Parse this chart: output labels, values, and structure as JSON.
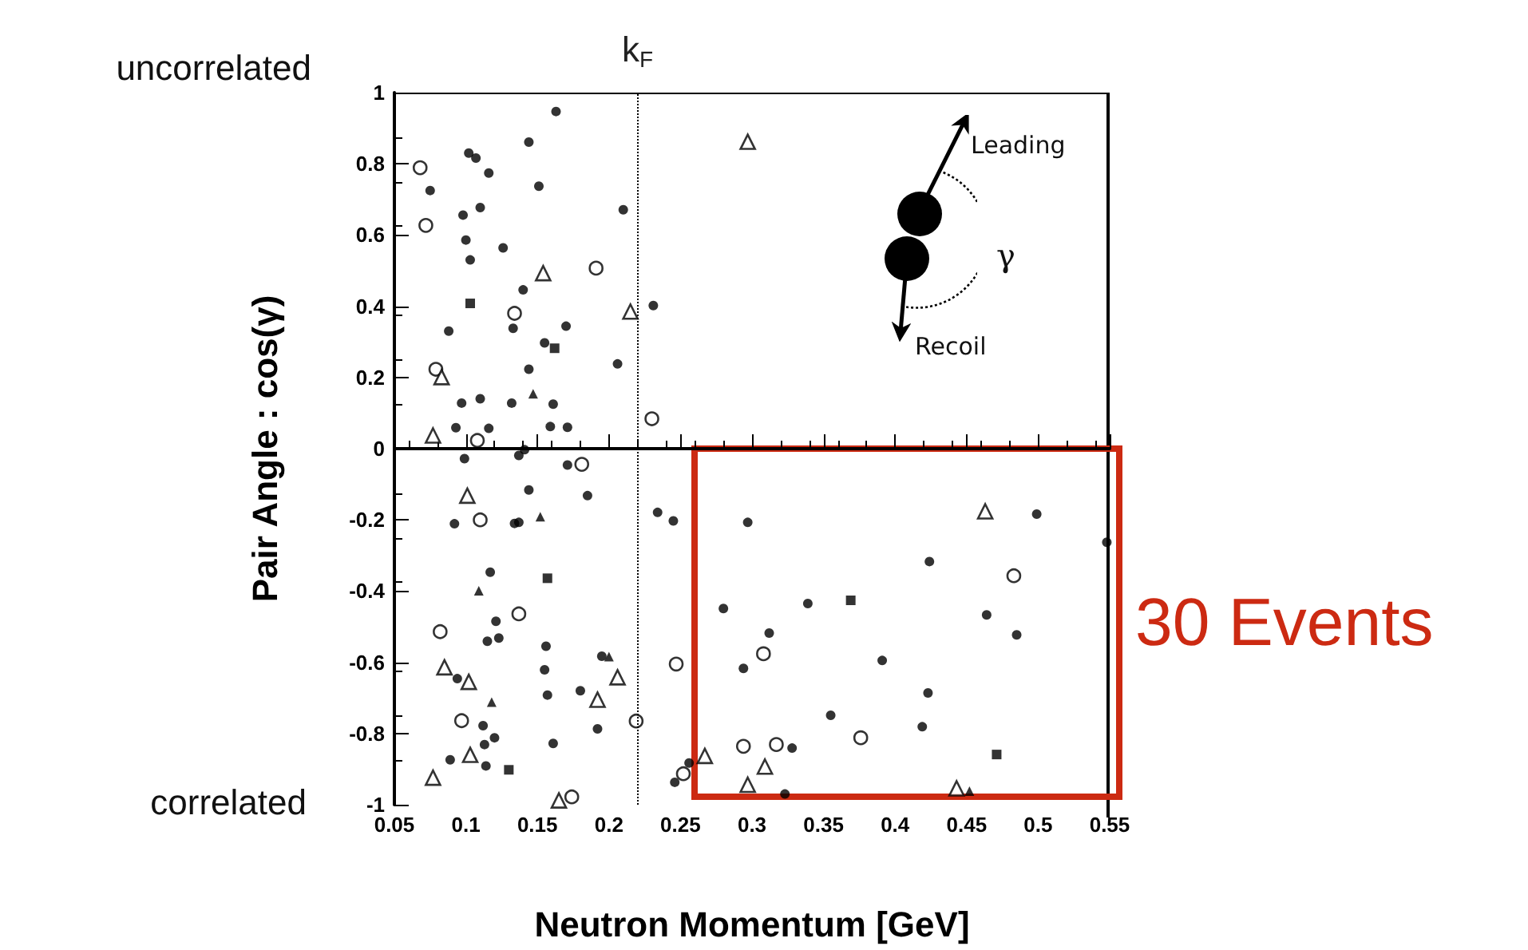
{
  "chart_data": {
    "type": "scatter",
    "xlabel": "Neutron Momentum [GeV]",
    "ylabel": "Pair Angle : cos(γ)",
    "xlim": [
      0.05,
      0.55
    ],
    "xticks": [
      0.05,
      0.1,
      0.15,
      0.2,
      0.25,
      0.3,
      0.35,
      0.4,
      0.45,
      0.5,
      0.55
    ],
    "ylim": [
      -1,
      1
    ],
    "yticks": [
      -1,
      -0.8,
      -0.6,
      -0.4,
      -0.2,
      0,
      0.2,
      0.4,
      0.6,
      0.8,
      1
    ],
    "grid": false,
    "ref_lines": [
      {
        "axis": "x",
        "value": 0.22,
        "label": "k$_{F}$",
        "line_style": "dotted",
        "color": "#000000"
      },
      {
        "axis": "y",
        "value": 0,
        "label": null,
        "line_style": "solid",
        "color": "#000000"
      }
    ],
    "annotations": [
      "uncorrelated",
      "correlated",
      "30 Events",
      "Leading",
      "Recoil",
      "γ"
    ],
    "series": [
      {
        "color": "#000000",
        "marker": "circle",
        "x": [
          0.163,
          0.144,
          0.102,
          0.107,
          0.116,
          0.075,
          0.151,
          0.11,
          0.21,
          0.098,
          0.1,
          0.103,
          0.126,
          0.14,
          0.231,
          0.088,
          0.133,
          0.17,
          0.155,
          0.206,
          0.144,
          0.097,
          0.11,
          0.132,
          0.161,
          0.093,
          0.116,
          0.159,
          0.171,
          0.141,
          0.099,
          0.137,
          0.171,
          0.144,
          0.185,
          0.234,
          0.245,
          0.092,
          0.134,
          0.137,
          0.117,
          0.121,
          0.115,
          0.123,
          0.156,
          0.155,
          0.094,
          0.157,
          0.18,
          0.195,
          0.112,
          0.192,
          0.12,
          0.113,
          0.161,
          0.089,
          0.114,
          0.246,
          0.297,
          0.499,
          0.548,
          0.424,
          0.28,
          0.339,
          0.464,
          0.485,
          0.312,
          0.294,
          0.391,
          0.423,
          0.355,
          0.419,
          0.328,
          0.256,
          0.323
        ],
        "values": [
          0.947,
          0.861,
          0.83,
          0.816,
          0.774,
          0.725,
          0.737,
          0.677,
          0.671,
          0.656,
          0.586,
          0.53,
          0.564,
          0.446,
          0.402,
          0.33,
          0.338,
          0.344,
          0.297,
          0.238,
          0.223,
          0.128,
          0.14,
          0.128,
          0.125,
          0.059,
          0.057,
          0.062,
          0.06,
          -0.003,
          -0.028,
          -0.019,
          -0.046,
          -0.116,
          -0.132,
          -0.179,
          -0.203,
          -0.211,
          -0.21,
          -0.207,
          -0.347,
          -0.485,
          -0.541,
          -0.532,
          -0.555,
          -0.621,
          -0.646,
          -0.692,
          -0.68,
          -0.583,
          -0.778,
          -0.787,
          -0.812,
          -0.831,
          -0.828,
          -0.874,
          -0.891,
          -0.937,
          -0.207,
          -0.184,
          -0.263,
          -0.317,
          -0.449,
          -0.435,
          -0.467,
          -0.523,
          -0.518,
          -0.617,
          -0.595,
          -0.686,
          -0.749,
          -0.781,
          -0.841,
          -0.883,
          -0.97
        ]
      },
      {
        "color": "#000000",
        "marker": "circle",
        "x": [
          0.068,
          0.072,
          0.191,
          0.134,
          0.079,
          0.108,
          0.23,
          0.11,
          0.181,
          0.082,
          0.137,
          0.097,
          0.219,
          0.247,
          0.174,
          0.252,
          0.483,
          0.308,
          0.294,
          0.317,
          0.376
        ],
        "values": [
          0.789,
          0.627,
          0.507,
          0.38,
          0.223,
          0.023,
          0.084,
          -0.2,
          -0.044,
          -0.514,
          -0.464,
          -0.764,
          -0.765,
          -0.605,
          -0.978,
          -0.913,
          -0.357,
          -0.576,
          -0.836,
          -0.831,
          -0.812
        ]
      },
      {
        "color": "#000000",
        "marker": "triangle",
        "x": [
          0.147,
          0.152,
          0.109,
          0.118,
          0.2,
          0.452
        ],
        "values": [
          0.154,
          -0.191,
          -0.399,
          -0.712,
          -0.584,
          -0.962
        ]
      },
      {
        "color": "#000000",
        "marker": "triangle",
        "x": [
          0.154,
          0.215,
          0.083,
          0.077,
          0.297,
          0.101,
          0.085,
          0.102,
          0.192,
          0.206,
          0.103,
          0.077,
          0.165,
          0.463,
          0.267,
          0.309,
          0.297,
          0.443
        ],
        "values": [
          0.493,
          0.385,
          0.201,
          0.037,
          0.862,
          -0.132,
          -0.614,
          -0.655,
          -0.705,
          -0.642,
          -0.86,
          -0.924,
          -0.988,
          -0.176,
          -0.863,
          -0.893,
          -0.944,
          -0.954
        ]
      },
      {
        "color": "#000000",
        "marker": "square",
        "x": [
          0.103,
          0.162,
          0.157,
          0.13,
          0.369,
          0.471
        ],
        "values": [
          0.408,
          0.282,
          -0.364,
          -0.902,
          -0.426,
          -0.859
        ]
      }
    ]
  }
}
